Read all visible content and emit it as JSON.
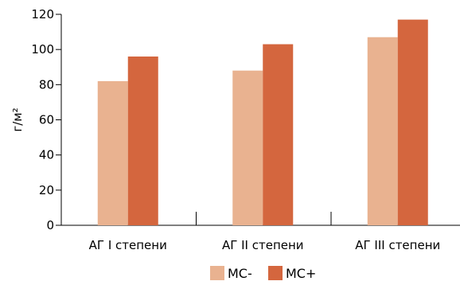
{
  "chart_data": {
    "type": "bar",
    "title": "",
    "xlabel": "",
    "ylabel": "г/м²",
    "ylim": [
      0,
      120
    ],
    "yticks": [
      0,
      20,
      40,
      60,
      80,
      100,
      120
    ],
    "categories": [
      "АГ I степени",
      "АГ II степени",
      "АГ III степени"
    ],
    "series": [
      {
        "name": "МС-",
        "color": "#E9B290",
        "values": [
          82,
          88,
          107
        ]
      },
      {
        "name": "МС+",
        "color": "#D4663E",
        "values": [
          96,
          103,
          117
        ]
      }
    ],
    "grid": false,
    "legend": "bottom-center"
  }
}
